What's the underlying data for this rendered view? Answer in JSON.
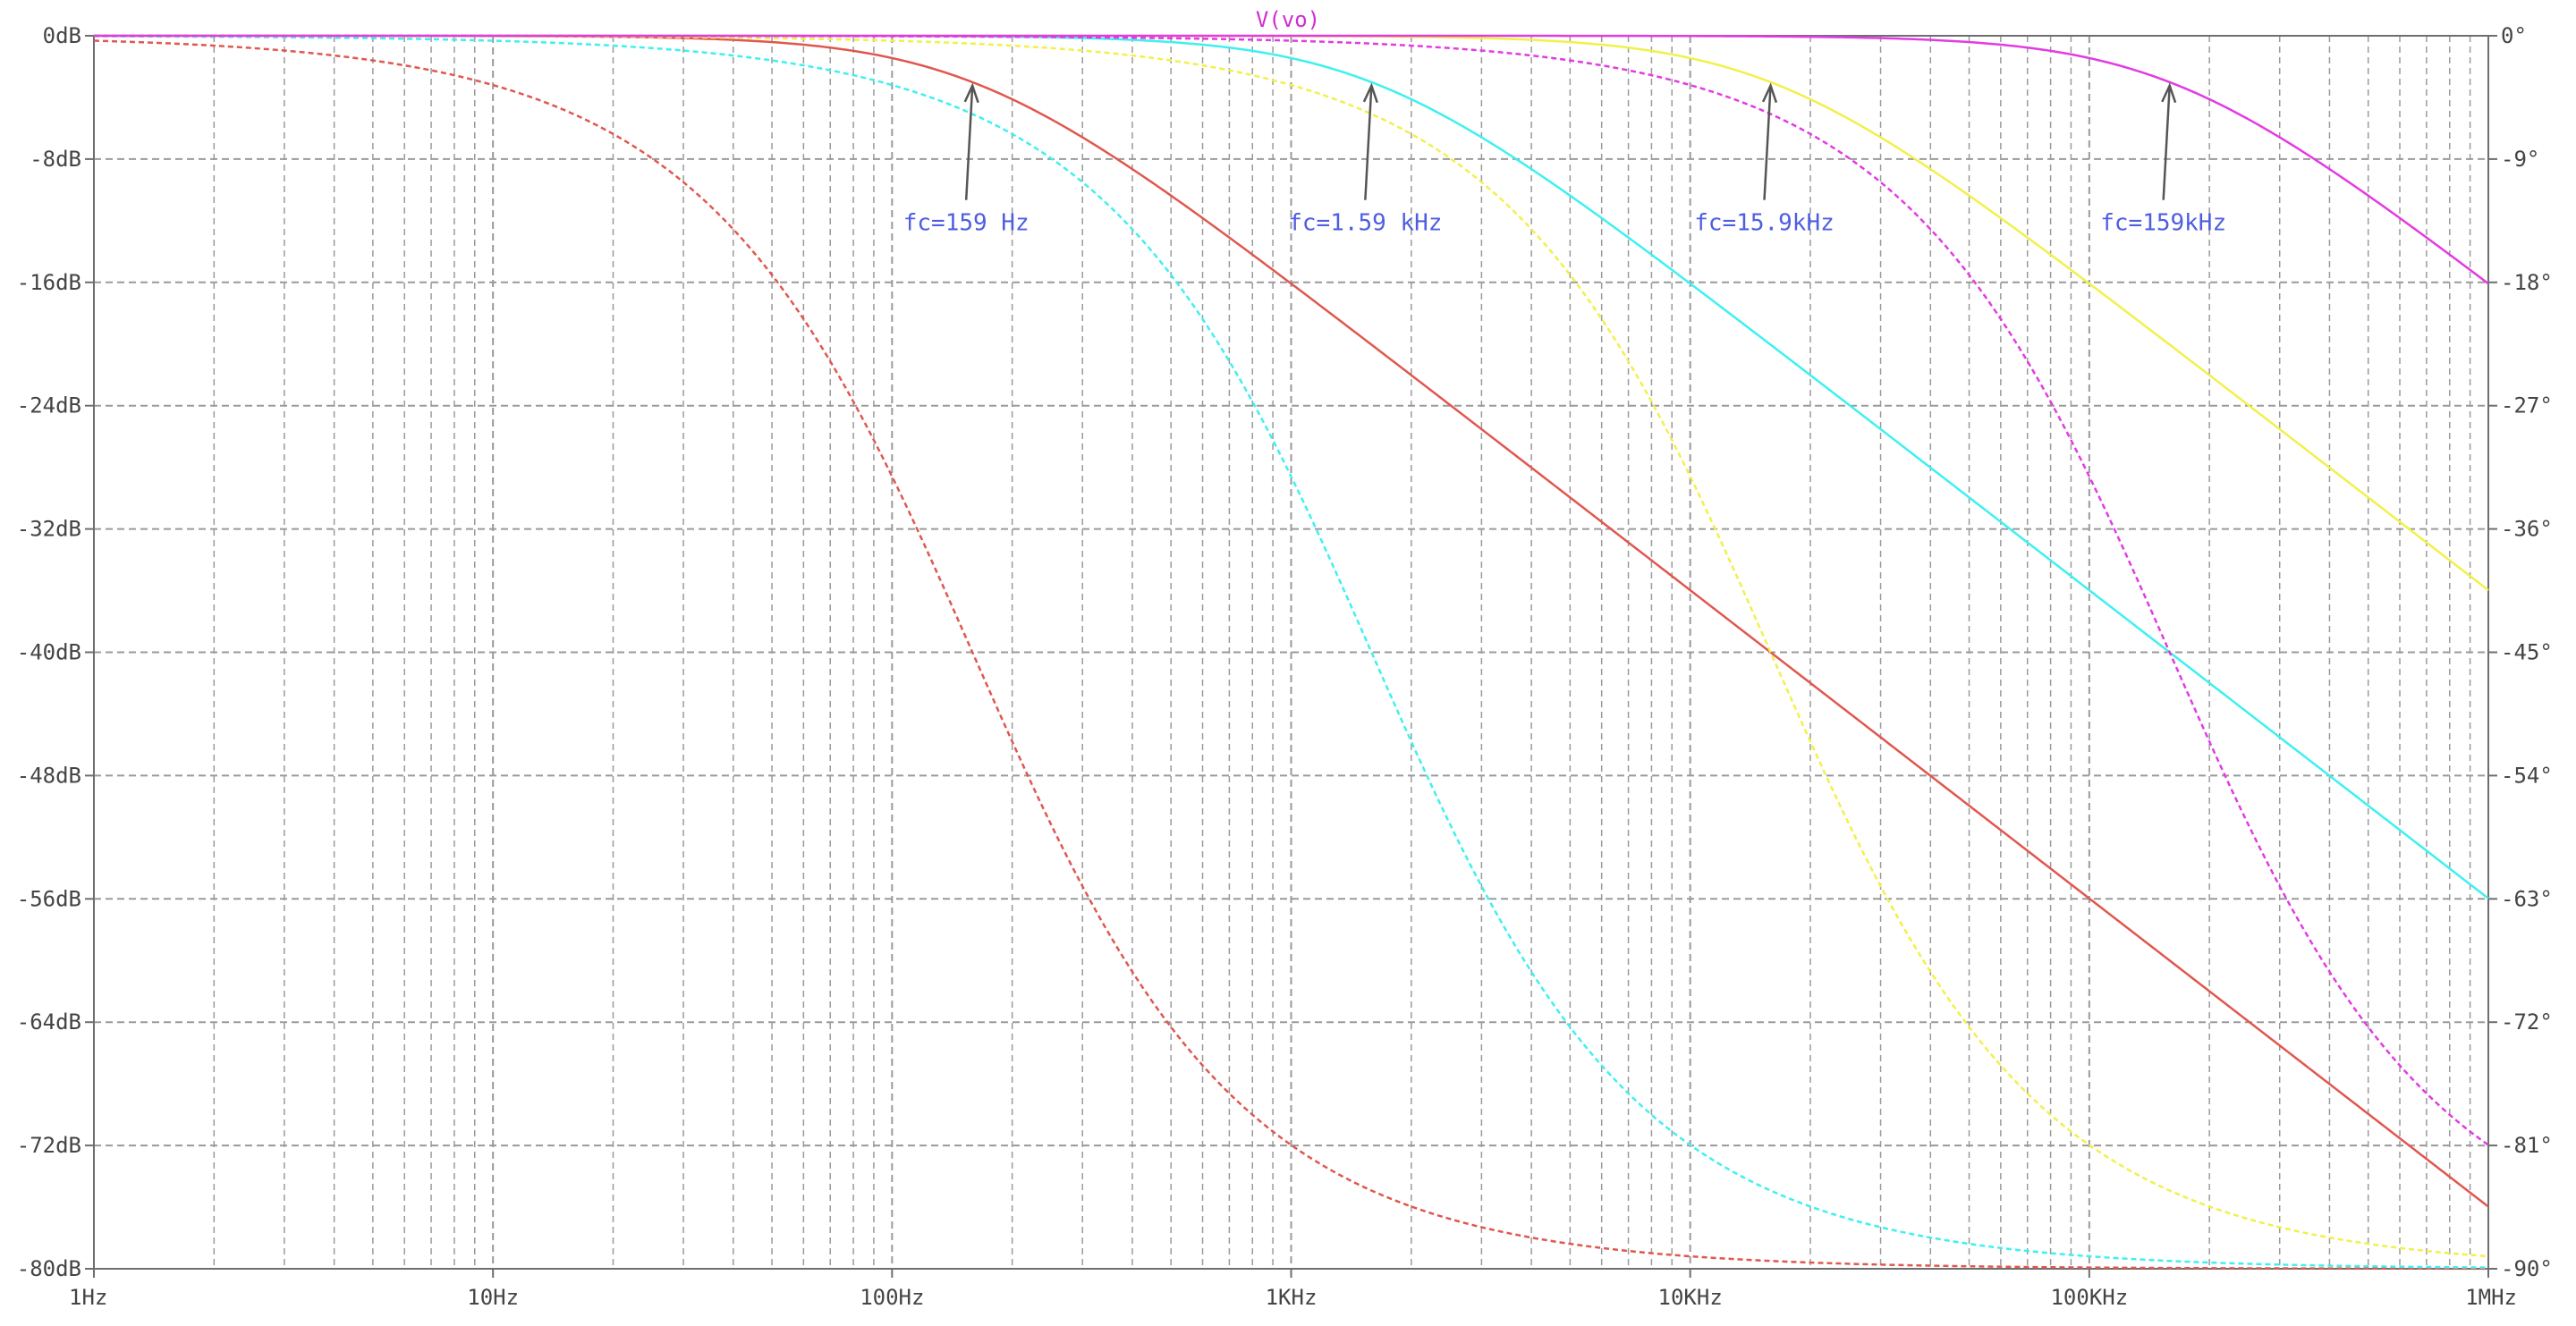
{
  "chart_data": {
    "type": "line",
    "title": "V(vo)",
    "x_scale": "log",
    "xlim": [
      1,
      1000000
    ],
    "x_ticks": [
      1,
      10,
      100,
      1000,
      10000,
      100000,
      1000000
    ],
    "x_tick_labels": [
      "1Hz",
      "10Hz",
      "100Hz",
      "1KHz",
      "10KHz",
      "100KHz",
      "1MHz"
    ],
    "ylim": [
      -80,
      0
    ],
    "y_ticks": [
      0,
      -8,
      -16,
      -24,
      -32,
      -40,
      -48,
      -56,
      -64,
      -72,
      -80
    ],
    "y_tick_labels": [
      "0dB",
      "-8dB",
      "-16dB",
      "-24dB",
      "-32dB",
      "-40dB",
      "-48dB",
      "-56dB",
      "-64dB",
      "-72dB",
      "-80dB"
    ],
    "y2lim": [
      -90,
      0
    ],
    "y2_ticks": [
      0,
      -9,
      -18,
      -27,
      -36,
      -45,
      -54,
      -63,
      -72,
      -81,
      -90
    ],
    "y2_tick_labels": [
      "0°",
      "-9°",
      "-18°",
      "-27°",
      "-36°",
      "-45°",
      "-54°",
      "-63°",
      "-72°",
      "-81°",
      "-90°"
    ],
    "grid": true,
    "grid_style": "dashed",
    "series": [
      {
        "cutoff_hz": 159,
        "quantity": "magnitude_db",
        "color": "#e0574f",
        "dash": "solid",
        "points": [
          [
            1,
            0
          ],
          [
            10,
            -0.02
          ],
          [
            100,
            -1.5
          ],
          [
            159,
            -3.0
          ],
          [
            1000,
            -16.1
          ],
          [
            10000,
            -36.0
          ],
          [
            100000,
            -56.0
          ],
          [
            1000000,
            -76.0
          ]
        ]
      },
      {
        "cutoff_hz": 159,
        "quantity": "phase_deg",
        "color": "#e0574f",
        "dash": "dashed",
        "points": [
          [
            1,
            -0.36
          ],
          [
            10,
            -3.6
          ],
          [
            100,
            -32.2
          ],
          [
            159,
            -45
          ],
          [
            1000,
            -80.97
          ],
          [
            10000,
            -89.09
          ],
          [
            100000,
            -89.91
          ],
          [
            1000000,
            -89.99
          ]
        ]
      },
      {
        "cutoff_hz": 1590,
        "quantity": "magnitude_db",
        "color": "#3ff0f0",
        "dash": "solid",
        "points": [
          [
            1,
            0
          ],
          [
            100,
            -0.02
          ],
          [
            1000,
            -1.5
          ],
          [
            1590,
            -3.0
          ],
          [
            10000,
            -16.1
          ],
          [
            100000,
            -36.0
          ],
          [
            1000000,
            -56.0
          ]
        ]
      },
      {
        "cutoff_hz": 1590,
        "quantity": "phase_deg",
        "color": "#3ff0f0",
        "dash": "dashed",
        "points": [
          [
            1,
            -0.04
          ],
          [
            10,
            -0.36
          ],
          [
            100,
            -3.6
          ],
          [
            1000,
            -32.2
          ],
          [
            1590,
            -45
          ],
          [
            10000,
            -80.97
          ],
          [
            100000,
            -89.09
          ],
          [
            1000000,
            -89.91
          ]
        ]
      },
      {
        "cutoff_hz": 15900,
        "quantity": "magnitude_db",
        "color": "#f2f04a",
        "dash": "solid",
        "points": [
          [
            1,
            0
          ],
          [
            1000,
            -0.02
          ],
          [
            10000,
            -1.5
          ],
          [
            15900,
            -3.0
          ],
          [
            100000,
            -16.1
          ],
          [
            1000000,
            -36.0
          ]
        ]
      },
      {
        "cutoff_hz": 15900,
        "quantity": "phase_deg",
        "color": "#f2f04a",
        "dash": "dashed",
        "points": [
          [
            1,
            0
          ],
          [
            100,
            -0.36
          ],
          [
            1000,
            -3.6
          ],
          [
            10000,
            -32.2
          ],
          [
            15900,
            -45
          ],
          [
            100000,
            -80.97
          ],
          [
            1000000,
            -89.09
          ]
        ]
      },
      {
        "cutoff_hz": 159000,
        "quantity": "magnitude_db",
        "color": "#e23be2",
        "dash": "solid",
        "points": [
          [
            1,
            0
          ],
          [
            10000,
            -0.02
          ],
          [
            100000,
            -1.5
          ],
          [
            159000,
            -3.0
          ],
          [
            1000000,
            -16.1
          ]
        ]
      },
      {
        "cutoff_hz": 159000,
        "quantity": "phase_deg",
        "color": "#e23be2",
        "dash": "dashed",
        "points": [
          [
            1,
            0
          ],
          [
            1000,
            -0.36
          ],
          [
            10000,
            -3.6
          ],
          [
            100000,
            -32.2
          ],
          [
            159000,
            -45
          ],
          [
            1000000,
            -80.97
          ]
        ]
      }
    ],
    "annotations": [
      {
        "text": "fc=159 Hz",
        "x": 159,
        "y": -3.0,
        "color": "#4e5ee0"
      },
      {
        "text": "fc=1.59 kHz",
        "x": 1590,
        "y": -3.0,
        "color": "#4e5ee0"
      },
      {
        "text": "fc=15.9kHz",
        "x": 15900,
        "y": -3.0,
        "color": "#4e5ee0"
      },
      {
        "text": "fc=159kHz",
        "x": 159000,
        "y": -3.0,
        "color": "#4e5ee0"
      }
    ],
    "colors": {
      "title": "#d22bd2",
      "axis": "#6e6e6e",
      "grid": "#9a9a9a",
      "tick_text": "#444444",
      "arrow": "#555555"
    }
  }
}
